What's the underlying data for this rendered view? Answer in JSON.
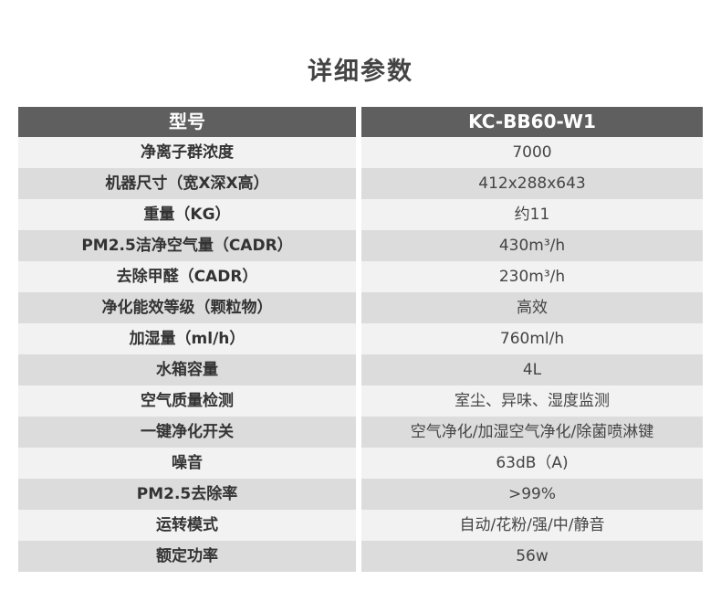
{
  "title": "详细参数",
  "header": {
    "label": "型号",
    "value": "KC-BB60-W1"
  },
  "rows": [
    {
      "label": "净离子群浓度",
      "value": "7000"
    },
    {
      "label": "机器尺寸（宽X深X高）",
      "value": "412x288x643"
    },
    {
      "label": "重量（KG）",
      "value": "约11"
    },
    {
      "label": "PM2.5洁净空气量（CADR）",
      "value": "430m³/h"
    },
    {
      "label": "去除甲醛（CADR）",
      "value": "230m³/h"
    },
    {
      "label": "净化能效等级（颗粒物）",
      "value": "高效"
    },
    {
      "label": "加湿量（ml/h）",
      "value": "760ml/h"
    },
    {
      "label": "水箱容量",
      "value": "4L"
    },
    {
      "label": "空气质量检测",
      "value": "室尘、异味、湿度监测"
    },
    {
      "label": "一键净化开关",
      "value": "空气净化/加湿空气净化/除菌喷淋键"
    },
    {
      "label": "噪音",
      "value": "63dB（A)"
    },
    {
      "label": "PM2.5去除率",
      "value": ">99%"
    },
    {
      "label": "运转模式",
      "value": "自动/花粉/强/中/静音"
    },
    {
      "label": "额定功率",
      "value": "56w"
    }
  ]
}
